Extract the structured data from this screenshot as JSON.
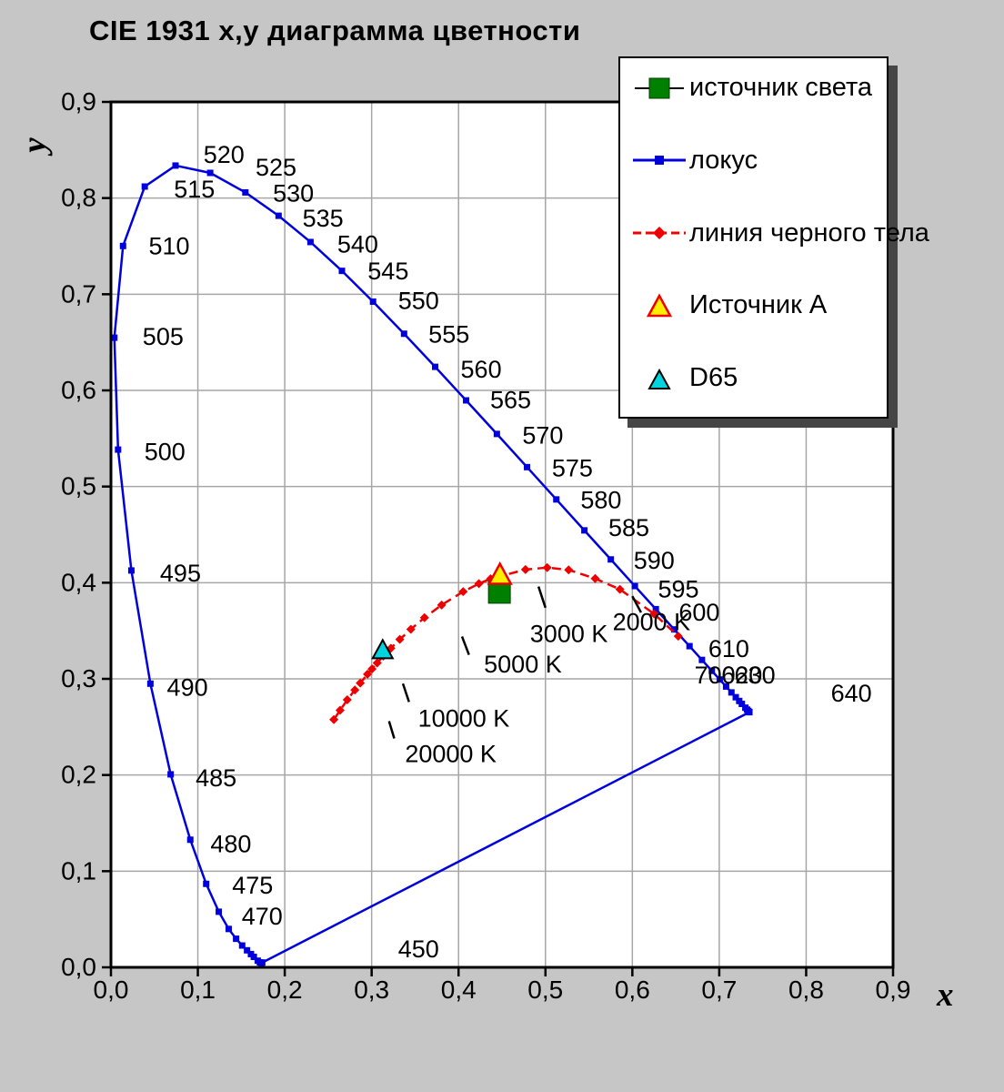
{
  "title": "CIE 1931  x,y диаграмма цветности",
  "colors": {
    "background": "#c6c6c6",
    "plot_bg": "#ffffff",
    "grid": "#a6a6a6",
    "frame": "#000000",
    "locus": "#0000dd",
    "blackbody": "#ee0000",
    "source_square": "#008000",
    "source_square_stroke": "#004000",
    "illuminant_a_fill": "#ffee00",
    "illuminant_a_stroke": "#ee0000",
    "d65_fill": "#00d4de",
    "d65_stroke": "#000000"
  },
  "chart_data": {
    "type": "line",
    "title": "CIE 1931  x,y диаграмма цветности",
    "xlabel": "x",
    "ylabel": "y",
    "xlim": [
      0,
      0.9
    ],
    "ylim": [
      0,
      0.9
    ],
    "grid": true,
    "legend_position": "top-right",
    "x_tick_labels": [
      "0,0",
      "0,1",
      "0,2",
      "0,3",
      "0,4",
      "0,5",
      "0,6",
      "0,7",
      "0,8",
      "0,9"
    ],
    "y_tick_labels": [
      "0,0",
      "0,1",
      "0,2",
      "0,3",
      "0,4",
      "0,5",
      "0,6",
      "0,7",
      "0,8",
      "0,9"
    ],
    "spectral_locus": {
      "name": "локус",
      "points": [
        [
          380,
          0.1741,
          0.005
        ],
        [
          400,
          0.1733,
          0.0048
        ],
        [
          420,
          0.1714,
          0.0051
        ],
        [
          430,
          0.1689,
          0.0069
        ],
        [
          440,
          0.1644,
          0.0109
        ],
        [
          445,
          0.1611,
          0.0138
        ],
        [
          450,
          0.1566,
          0.0177
        ],
        [
          455,
          0.151,
          0.0227
        ],
        [
          460,
          0.144,
          0.0297
        ],
        [
          465,
          0.1355,
          0.0399
        ],
        [
          470,
          0.1241,
          0.0578
        ],
        [
          475,
          0.1096,
          0.0868
        ],
        [
          480,
          0.0913,
          0.1327
        ],
        [
          485,
          0.0687,
          0.2007
        ],
        [
          490,
          0.0454,
          0.295
        ],
        [
          495,
          0.0235,
          0.4127
        ],
        [
          500,
          0.0082,
          0.5384
        ],
        [
          505,
          0.0039,
          0.6548
        ],
        [
          510,
          0.0139,
          0.7502
        ],
        [
          515,
          0.0389,
          0.812
        ],
        [
          520,
          0.0743,
          0.8338
        ],
        [
          525,
          0.1142,
          0.8262
        ],
        [
          530,
          0.1547,
          0.8059
        ],
        [
          535,
          0.1929,
          0.7816
        ],
        [
          540,
          0.2296,
          0.7543
        ],
        [
          545,
          0.2658,
          0.7243
        ],
        [
          550,
          0.3016,
          0.6923
        ],
        [
          555,
          0.3373,
          0.6589
        ],
        [
          560,
          0.3731,
          0.6245
        ],
        [
          565,
          0.4087,
          0.5896
        ],
        [
          570,
          0.4441,
          0.5547
        ],
        [
          575,
          0.4788,
          0.5202
        ],
        [
          580,
          0.5125,
          0.4866
        ],
        [
          585,
          0.5448,
          0.4544
        ],
        [
          590,
          0.5752,
          0.4242
        ],
        [
          595,
          0.6029,
          0.3965
        ],
        [
          600,
          0.627,
          0.3725
        ],
        [
          605,
          0.6482,
          0.3514
        ],
        [
          610,
          0.6658,
          0.334
        ],
        [
          615,
          0.6801,
          0.3197
        ],
        [
          620,
          0.6915,
          0.3083
        ],
        [
          625,
          0.7006,
          0.2993
        ],
        [
          630,
          0.7079,
          0.292
        ],
        [
          635,
          0.714,
          0.2859
        ],
        [
          640,
          0.719,
          0.2809
        ],
        [
          645,
          0.723,
          0.277
        ],
        [
          650,
          0.726,
          0.274
        ],
        [
          660,
          0.73,
          0.27
        ],
        [
          670,
          0.732,
          0.268
        ],
        [
          680,
          0.7334,
          0.2666
        ],
        [
          690,
          0.7344,
          0.2656
        ],
        [
          700,
          0.7347,
          0.2653
        ]
      ]
    },
    "purple_line": [
      [
        0.1741,
        0.005
      ],
      [
        0.7347,
        0.2653
      ]
    ],
    "blackbody_locus": {
      "name": "линия черного тела",
      "points": [
        [
          20000,
          0.2565,
          0.2577
        ],
        [
          15000,
          0.2637,
          0.2673
        ],
        [
          12000,
          0.2719,
          0.2782
        ],
        [
          10000,
          0.2807,
          0.2884
        ],
        [
          9000,
          0.2869,
          0.2956
        ],
        [
          8000,
          0.2952,
          0.3048
        ],
        [
          7500,
          0.3004,
          0.3103
        ],
        [
          7000,
          0.3064,
          0.3166
        ],
        [
          6500,
          0.3135,
          0.3237
        ],
        [
          6000,
          0.3221,
          0.3318
        ],
        [
          5500,
          0.3324,
          0.341
        ],
        [
          5000,
          0.3451,
          0.3516
        ],
        [
          4500,
          0.3608,
          0.3636
        ],
        [
          4000,
          0.3805,
          0.3768
        ],
        [
          3500,
          0.4053,
          0.3907
        ],
        [
          3200,
          0.4234,
          0.399
        ],
        [
          3000,
          0.4369,
          0.4041
        ],
        [
          2800,
          0.4512,
          0.4075
        ],
        [
          2500,
          0.477,
          0.4137
        ],
        [
          2200,
          0.502,
          0.4157
        ],
        [
          2000,
          0.5267,
          0.4133
        ],
        [
          1700,
          0.5572,
          0.4043
        ],
        [
          1500,
          0.5857,
          0.3931
        ],
        [
          1200,
          0.625,
          0.3676
        ],
        [
          1000,
          0.6528,
          0.3444
        ]
      ]
    },
    "wavelength_labels": [
      {
        "text": "450",
        "x": 0.354,
        "y": 0.019
      },
      {
        "text": "470",
        "x": 0.174,
        "y": 0.053
      },
      {
        "text": "475",
        "x": 0.163,
        "y": 0.085
      },
      {
        "text": "480",
        "x": 0.138,
        "y": 0.128
      },
      {
        "text": "485",
        "x": 0.121,
        "y": 0.197
      },
      {
        "text": "490",
        "x": 0.088,
        "y": 0.291
      },
      {
        "text": "495",
        "x": 0.08,
        "y": 0.41
      },
      {
        "text": "500",
        "x": 0.062,
        "y": 0.536
      },
      {
        "text": "505",
        "x": 0.06,
        "y": 0.656
      },
      {
        "text": "510",
        "x": 0.067,
        "y": 0.75
      },
      {
        "text": "515",
        "x": 0.096,
        "y": 0.809
      },
      {
        "text": "520",
        "x": 0.13,
        "y": 0.845
      },
      {
        "text": "525",
        "x": 0.19,
        "y": 0.832
      },
      {
        "text": "530",
        "x": 0.21,
        "y": 0.805
      },
      {
        "text": "535",
        "x": 0.244,
        "y": 0.779
      },
      {
        "text": "540",
        "x": 0.284,
        "y": 0.752
      },
      {
        "text": "545",
        "x": 0.319,
        "y": 0.724
      },
      {
        "text": "550",
        "x": 0.354,
        "y": 0.693
      },
      {
        "text": "555",
        "x": 0.389,
        "y": 0.658
      },
      {
        "text": "560",
        "x": 0.426,
        "y": 0.622
      },
      {
        "text": "565",
        "x": 0.46,
        "y": 0.59
      },
      {
        "text": "570",
        "x": 0.497,
        "y": 0.553
      },
      {
        "text": "575",
        "x": 0.531,
        "y": 0.519
      },
      {
        "text": "580",
        "x": 0.564,
        "y": 0.486
      },
      {
        "text": "585",
        "x": 0.596,
        "y": 0.457
      },
      {
        "text": "590",
        "x": 0.625,
        "y": 0.423
      },
      {
        "text": "595",
        "x": 0.653,
        "y": 0.393
      },
      {
        "text": "600",
        "x": 0.677,
        "y": 0.369
      },
      {
        "text": "610",
        "x": 0.711,
        "y": 0.331
      },
      {
        "text": "700",
        "x": 0.695,
        "y": 0.304
      },
      {
        "text": "620",
        "x": 0.726,
        "y": 0.304
      },
      {
        "text": "630",
        "x": 0.741,
        "y": 0.304
      },
      {
        "text": "640",
        "x": 0.852,
        "y": 0.285
      }
    ],
    "temperature_labels": [
      {
        "text": "2000 K",
        "x": 0.622,
        "y": 0.359,
        "leader": [
          0.6,
          0.386,
          0.61,
          0.369
        ]
      },
      {
        "text": "3000 K",
        "x": 0.527,
        "y": 0.347,
        "leader": [
          0.492,
          0.396,
          0.5,
          0.374
        ]
      },
      {
        "text": "5000 K",
        "x": 0.474,
        "y": 0.315,
        "leader": [
          0.404,
          0.344,
          0.412,
          0.325
        ]
      },
      {
        "text": "10000 K",
        "x": 0.406,
        "y": 0.259,
        "leader": [
          0.336,
          0.295,
          0.343,
          0.276
        ]
      },
      {
        "text": "20000 K",
        "x": 0.391,
        "y": 0.222,
        "leader": [
          0.32,
          0.256,
          0.326,
          0.238
        ]
      }
    ],
    "point_markers": [
      {
        "name": "источник света",
        "shape": "square",
        "x": 0.447,
        "y": 0.39
      },
      {
        "name": "Источник А",
        "shape": "triangle",
        "x": 0.4476,
        "y": 0.4074
      },
      {
        "name": "D65",
        "shape": "triangle",
        "x": 0.3127,
        "y": 0.329
      }
    ]
  },
  "legend": {
    "items": [
      {
        "label": "источник света",
        "marker": "green-square"
      },
      {
        "label": "локус",
        "marker": "blue-line-square"
      },
      {
        "label": "линия черного тела",
        "marker": "red-dash-diamond"
      },
      {
        "label": "Источник А",
        "marker": "yellow-triangle"
      },
      {
        "label": "D65",
        "marker": "cyan-triangle"
      }
    ]
  }
}
